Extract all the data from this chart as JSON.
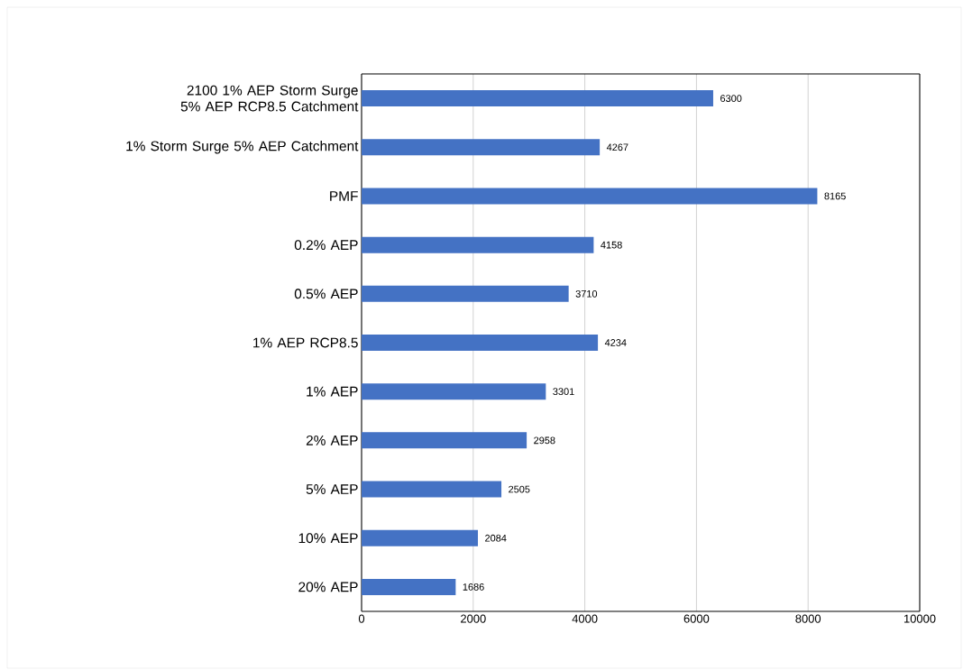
{
  "chart_data": {
    "type": "bar",
    "orientation": "horizontal",
    "categories": [
      "2100 1% AEP Storm Surge 5% AEP RCP8.5 Catchment",
      "1% Storm Surge 5% AEP Catchment",
      "PMF",
      "0.2% AEP",
      "0.5% AEP",
      "1% AEP RCP8.5",
      "1% AEP",
      "2% AEP",
      "5% AEP",
      "10% AEP",
      "20% AEP"
    ],
    "values": [
      6300,
      4267,
      8165,
      4158,
      3710,
      4234,
      3301,
      2958,
      2505,
      2084,
      1686
    ],
    "color": "#4472c4",
    "xlim": [
      0,
      10000
    ],
    "xticks": [
      0,
      2000,
      4000,
      6000,
      8000,
      10000
    ],
    "grid": "x",
    "data_labels": true
  }
}
